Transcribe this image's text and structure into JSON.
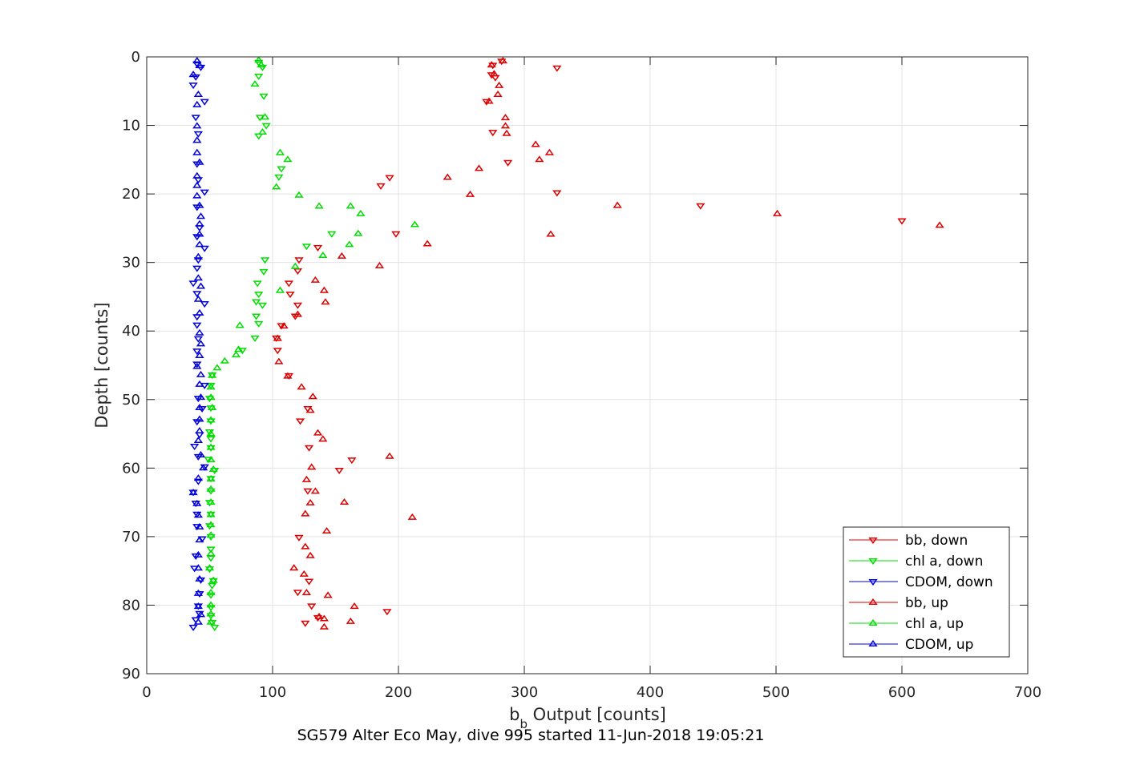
{
  "caption": "SG579 Alter Eco May, dive 995 started 11-Jun-2018 19:05:21",
  "chart_data": {
    "type": "scatter",
    "title": "",
    "xlabel_main": "b",
    "xlabel_sub": "b",
    "xlabel_rest": " Output [counts]",
    "ylabel": "Depth [counts]",
    "xlim": [
      0,
      700
    ],
    "ylim": [
      0,
      90
    ],
    "y_reversed": true,
    "grid": true,
    "legend_position": "bottom-right",
    "x_ticks": [
      "0",
      "100",
      "200",
      "300",
      "400",
      "500",
      "600",
      "700"
    ],
    "y_ticks": [
      "0",
      "10",
      "20",
      "30",
      "40",
      "50",
      "60",
      "70",
      "80",
      "90"
    ],
    "series": [
      {
        "name": "bb, down",
        "color": "#dd0000",
        "marker": "triangle-down",
        "points": [
          [
            282,
            0.6
          ],
          [
            275,
            1.2
          ],
          [
            326,
            1.6
          ],
          [
            274,
            2.6
          ],
          [
            277,
            3.0
          ],
          [
            270,
            6.5
          ],
          [
            275,
            11.0
          ],
          [
            287,
            15.4
          ],
          [
            193,
            17.6
          ],
          [
            186,
            18.8
          ],
          [
            326,
            19.8
          ],
          [
            440,
            21.7
          ],
          [
            600,
            23.9
          ],
          [
            198,
            25.8
          ],
          [
            136,
            27.8
          ],
          [
            121,
            29.6
          ],
          [
            120,
            31.2
          ],
          [
            113,
            33.0
          ],
          [
            114,
            34.6
          ],
          [
            120,
            36.2
          ],
          [
            118,
            37.8
          ],
          [
            107,
            39.2
          ],
          [
            103,
            41.0
          ],
          [
            104,
            42.8
          ],
          [
            113,
            46.5
          ],
          [
            128,
            51.3
          ],
          [
            122,
            53.1
          ],
          [
            129,
            57.0
          ],
          [
            163,
            58.8
          ],
          [
            153,
            60.3
          ],
          [
            128,
            63.3
          ],
          [
            121,
            70.1
          ],
          [
            129,
            76.5
          ],
          [
            120,
            78.1
          ],
          [
            131,
            80.1
          ],
          [
            191,
            80.9
          ],
          [
            136,
            81.8
          ],
          [
            126,
            82.6
          ]
        ]
      },
      {
        "name": "chl a, down",
        "color": "#00dd00",
        "marker": "triangle-down",
        "points": [
          [
            89,
            0.8
          ],
          [
            92,
            1.5
          ],
          [
            89,
            2.8
          ],
          [
            93,
            5.7
          ],
          [
            90,
            8.8
          ],
          [
            95,
            10.0
          ],
          [
            89,
            11.5
          ],
          [
            107,
            16.3
          ],
          [
            105,
            17.5
          ],
          [
            147,
            25.8
          ],
          [
            127,
            27.6
          ],
          [
            94,
            29.6
          ],
          [
            93,
            31.3
          ],
          [
            88,
            33.0
          ],
          [
            89,
            34.6
          ],
          [
            87,
            35.7
          ],
          [
            92,
            36.2
          ],
          [
            87,
            37.8
          ],
          [
            89,
            38.9
          ],
          [
            86,
            41.0
          ],
          [
            76,
            42.8
          ],
          [
            52,
            46.4
          ],
          [
            51,
            47.9
          ],
          [
            50,
            49.8
          ],
          [
            51,
            51.2
          ],
          [
            51,
            53.1
          ],
          [
            50,
            54.7
          ],
          [
            51,
            55.7
          ],
          [
            51,
            57.0
          ],
          [
            49,
            58.7
          ],
          [
            54,
            60.3
          ],
          [
            51,
            61.5
          ],
          [
            51,
            63.3
          ],
          [
            50,
            65.0
          ],
          [
            51,
            66.7
          ],
          [
            50,
            68.4
          ],
          [
            51,
            70.0
          ],
          [
            51,
            71.8
          ],
          [
            51,
            73.1
          ],
          [
            50,
            74.7
          ],
          [
            53,
            76.4
          ],
          [
            52,
            77.1
          ],
          [
            51,
            78.5
          ],
          [
            51,
            80.3
          ],
          [
            51,
            81.5
          ],
          [
            52,
            82.5
          ],
          [
            54,
            83.2
          ]
        ]
      },
      {
        "name": "CDOM, down",
        "color": "#0000dd",
        "marker": "triangle-down",
        "points": [
          [
            40,
            1.0
          ],
          [
            43,
            1.5
          ],
          [
            39,
            2.9
          ],
          [
            37,
            4.1
          ],
          [
            46,
            6.5
          ],
          [
            39,
            8.8
          ],
          [
            41,
            11.2
          ],
          [
            40,
            15.6
          ],
          [
            41,
            17.9
          ],
          [
            46,
            19.7
          ],
          [
            40,
            21.9
          ],
          [
            42,
            24.9
          ],
          [
            40,
            26.2
          ],
          [
            46,
            27.9
          ],
          [
            41,
            29.6
          ],
          [
            40,
            30.8
          ],
          [
            37,
            33.0
          ],
          [
            40,
            34.5
          ],
          [
            46,
            36.0
          ],
          [
            40,
            37.9
          ],
          [
            40,
            39.1
          ],
          [
            41,
            41.1
          ],
          [
            40,
            42.9
          ],
          [
            40,
            44.8
          ],
          [
            46,
            47.9
          ],
          [
            41,
            49.8
          ],
          [
            44,
            51.3
          ],
          [
            40,
            53.2
          ],
          [
            42,
            55.1
          ],
          [
            38,
            56.8
          ],
          [
            41,
            58.3
          ],
          [
            46,
            59.8
          ],
          [
            41,
            61.9
          ],
          [
            37,
            63.5
          ],
          [
            39,
            65.1
          ],
          [
            40,
            66.7
          ],
          [
            40,
            68.5
          ],
          [
            44,
            70.3
          ],
          [
            39,
            72.8
          ],
          [
            38,
            74.6
          ],
          [
            43,
            76.3
          ],
          [
            42,
            78.3
          ],
          [
            41,
            80.1
          ],
          [
            42,
            81.2
          ],
          [
            39,
            82.1
          ],
          [
            37,
            83.2
          ]
        ]
      },
      {
        "name": "bb, up",
        "color": "#dd0000",
        "marker": "triangle-up",
        "points": [
          [
            283,
            0.6
          ],
          [
            274,
            1.2
          ],
          [
            276,
            2.5
          ],
          [
            280,
            4.2
          ],
          [
            279,
            5.5
          ],
          [
            272,
            6.5
          ],
          [
            285,
            8.9
          ],
          [
            285,
            10.1
          ],
          [
            286,
            11.2
          ],
          [
            309,
            12.8
          ],
          [
            320,
            14.0
          ],
          [
            312,
            15.0
          ],
          [
            264,
            16.3
          ],
          [
            239,
            17.6
          ],
          [
            257,
            20.1
          ],
          [
            374,
            21.7
          ],
          [
            501,
            22.9
          ],
          [
            630,
            24.6
          ],
          [
            321,
            25.9
          ],
          [
            223,
            27.3
          ],
          [
            155,
            29.1
          ],
          [
            185,
            30.5
          ],
          [
            134,
            32.6
          ],
          [
            141,
            34.1
          ],
          [
            142,
            35.8
          ],
          [
            120,
            37.6
          ],
          [
            109,
            39.3
          ],
          [
            104,
            41.1
          ],
          [
            105,
            44.5
          ],
          [
            112,
            46.6
          ],
          [
            123,
            48.2
          ],
          [
            132,
            49.6
          ],
          [
            130,
            51.6
          ],
          [
            136,
            54.9
          ],
          [
            140,
            55.8
          ],
          [
            193,
            58.3
          ],
          [
            131,
            59.9
          ],
          [
            127,
            61.7
          ],
          [
            134,
            63.4
          ],
          [
            157,
            65.0
          ],
          [
            130,
            65.1
          ],
          [
            126,
            66.7
          ],
          [
            211,
            67.2
          ],
          [
            143,
            69.2
          ],
          [
            126,
            71.5
          ],
          [
            130,
            72.8
          ],
          [
            117,
            74.6
          ],
          [
            125,
            75.5
          ],
          [
            127,
            78.2
          ],
          [
            144,
            78.6
          ],
          [
            165,
            80.2
          ],
          [
            137,
            81.7
          ],
          [
            141,
            82.0
          ],
          [
            162,
            82.4
          ],
          [
            141,
            83.2
          ]
        ]
      },
      {
        "name": "chl a, up",
        "color": "#00dd00",
        "marker": "triangle-up",
        "points": [
          [
            89,
            0.5
          ],
          [
            91,
            1.2
          ],
          [
            86,
            4.0
          ],
          [
            94,
            8.8
          ],
          [
            92,
            11.0
          ],
          [
            106,
            14.0
          ],
          [
            112,
            15.0
          ],
          [
            103,
            19.0
          ],
          [
            121,
            20.2
          ],
          [
            137,
            21.8
          ],
          [
            162,
            21.8
          ],
          [
            170,
            22.9
          ],
          [
            213,
            24.5
          ],
          [
            168,
            25.8
          ],
          [
            161,
            27.4
          ],
          [
            140,
            29.0
          ],
          [
            118,
            30.6
          ],
          [
            106,
            34.1
          ],
          [
            74,
            39.2
          ],
          [
            73,
            42.7
          ],
          [
            71,
            43.5
          ],
          [
            62,
            44.4
          ],
          [
            56,
            45.4
          ],
          [
            52,
            46.5
          ],
          [
            51,
            48.2
          ],
          [
            51,
            49.7
          ],
          [
            52,
            51.2
          ],
          [
            51,
            53.0
          ],
          [
            51,
            55.0
          ],
          [
            51,
            57.0
          ],
          [
            51,
            58.8
          ],
          [
            53,
            60.2
          ],
          [
            51,
            61.6
          ],
          [
            51,
            63.1
          ],
          [
            51,
            65.0
          ],
          [
            51,
            66.8
          ],
          [
            51,
            68.3
          ],
          [
            51,
            69.8
          ],
          [
            51,
            72.5
          ],
          [
            50,
            74.6
          ],
          [
            53,
            76.4
          ],
          [
            51,
            78.2
          ],
          [
            51,
            80.0
          ],
          [
            51,
            81.3
          ],
          [
            51,
            82.5
          ]
        ]
      },
      {
        "name": "CDOM, up",
        "color": "#0000dd",
        "marker": "triangle-up",
        "points": [
          [
            40,
            0.6
          ],
          [
            42,
            1.3
          ],
          [
            37,
            2.6
          ],
          [
            41,
            5.5
          ],
          [
            40,
            7.0
          ],
          [
            40,
            10.1
          ],
          [
            40,
            12.2
          ],
          [
            40,
            14.0
          ],
          [
            42,
            15.4
          ],
          [
            40,
            17.4
          ],
          [
            40,
            18.8
          ],
          [
            40,
            20.3
          ],
          [
            42,
            21.7
          ],
          [
            43,
            23.3
          ],
          [
            42,
            24.4
          ],
          [
            42,
            25.9
          ],
          [
            42,
            27.4
          ],
          [
            41,
            29.2
          ],
          [
            41,
            32.3
          ],
          [
            43,
            33.5
          ],
          [
            41,
            35.4
          ],
          [
            42,
            37.4
          ],
          [
            42,
            40.3
          ],
          [
            43,
            41.9
          ],
          [
            42,
            43.6
          ],
          [
            40,
            45.2
          ],
          [
            43,
            46.4
          ],
          [
            42,
            47.8
          ],
          [
            43,
            49.7
          ],
          [
            42,
            51.2
          ],
          [
            42,
            52.9
          ],
          [
            42,
            54.6
          ],
          [
            41,
            56.0
          ],
          [
            43,
            58.1
          ],
          [
            45,
            60.0
          ],
          [
            41,
            61.5
          ],
          [
            37,
            63.6
          ],
          [
            40,
            65.2
          ],
          [
            41,
            66.9
          ],
          [
            42,
            68.6
          ],
          [
            42,
            70.5
          ],
          [
            41,
            72.7
          ],
          [
            41,
            74.6
          ],
          [
            42,
            76.2
          ],
          [
            41,
            78.3
          ],
          [
            41,
            80.2
          ],
          [
            43,
            81.4
          ],
          [
            41,
            82.5
          ]
        ]
      }
    ]
  }
}
